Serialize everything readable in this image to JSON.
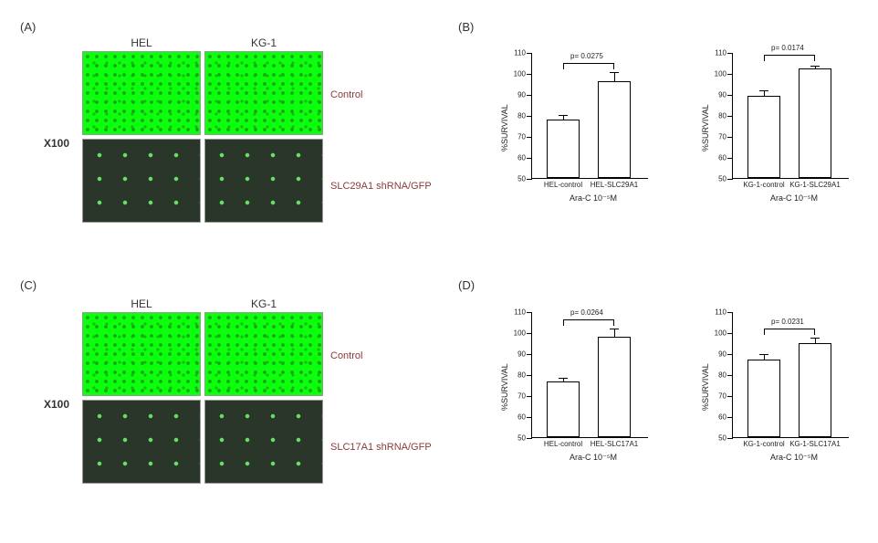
{
  "panels": {
    "A": {
      "label": "(A)"
    },
    "B": {
      "label": "(B)"
    },
    "C": {
      "label": "(C)"
    },
    "D": {
      "label": "(D)"
    }
  },
  "micro": {
    "mag": "X100",
    "col1": "HEL",
    "col2": "KG-1",
    "row1": "Control",
    "rowA2": "SLC29A1 shRNA/GFP",
    "rowC2": "SLC17A1 shRNA/GFP",
    "bright_bg": "#0cff0c",
    "dark_bg": "#2b362b"
  },
  "chartsB": {
    "left": {
      "type": "bar",
      "ylabel": "%SURVIVAL",
      "xlabel": "Ara-C  10⁻⁵M",
      "ylim": [
        50,
        110
      ],
      "ytick_step": 10,
      "p_text": "p= 0.0275",
      "categories": [
        "HEL-control",
        "HEL-SLC29A1"
      ],
      "values": [
        78,
        96
      ],
      "errors": [
        2.5,
        5
      ],
      "bar_color": "#ffffff",
      "border_color": "#000000",
      "bg": "#ffffff"
    },
    "right": {
      "type": "bar",
      "ylabel": "%SURVIVAL",
      "xlabel": "Ara-C  10⁻⁵M",
      "ylim": [
        50,
        110
      ],
      "ytick_step": 10,
      "p_text": "p= 0.0174",
      "categories": [
        "KG-1-control",
        "KG-1-SLC29A1"
      ],
      "values": [
        89,
        102
      ],
      "errors": [
        3,
        2
      ],
      "bar_color": "#ffffff",
      "border_color": "#000000",
      "bg": "#ffffff"
    }
  },
  "chartsD": {
    "left": {
      "type": "bar",
      "ylabel": "%SURVIVAL",
      "xlabel": "Ara-C  10⁻⁵M",
      "ylim": [
        50,
        110
      ],
      "ytick_step": 10,
      "p_text": "p= 0.0264",
      "categories": [
        "HEL-control",
        "HEL-SLC17A1"
      ],
      "values": [
        76.5,
        98
      ],
      "errors": [
        2,
        4
      ],
      "bar_color": "#ffffff",
      "border_color": "#000000",
      "bg": "#ffffff"
    },
    "right": {
      "type": "bar",
      "ylabel": "%SURVIVAL",
      "xlabel": "Ara-C  10⁻⁵M",
      "ylim": [
        50,
        110
      ],
      "ytick_step": 10,
      "p_text": "p= 0.0231",
      "categories": [
        "KG-1-control",
        "KG-1-SLC17A1"
      ],
      "values": [
        87,
        95
      ],
      "errors": [
        3,
        3
      ],
      "bar_color": "#ffffff",
      "border_color": "#000000",
      "bg": "#ffffff"
    }
  }
}
